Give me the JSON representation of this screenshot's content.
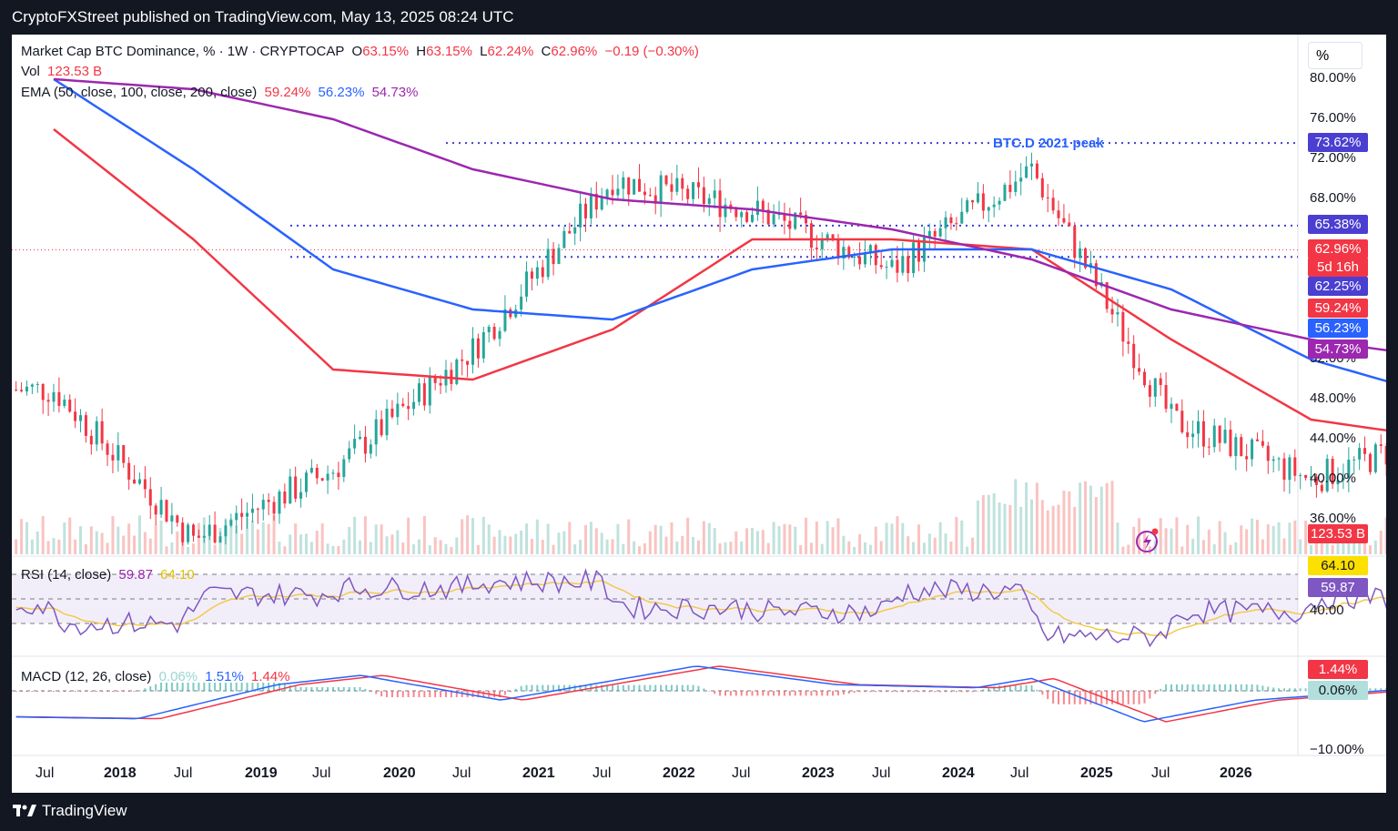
{
  "header": {
    "publisher_line": "CryptoFXStreet published on TradingView.com, May 13, 2025 08:24 UTC"
  },
  "footer": {
    "brand": "TradingView"
  },
  "legend": {
    "symbol": "Market Cap BTC Dominance, % · 1W · CRYPTOCAP",
    "open_label": "O",
    "open": "63.15%",
    "high_label": "H",
    "high": "63.15%",
    "low_label": "L",
    "low": "62.24%",
    "close_label": "C",
    "close": "62.96%",
    "change": "−0.19 (−0.30%)",
    "vol_label": "Vol",
    "vol": "123.53 B",
    "ema_label": "EMA (50, close, 100, close, 200, close)",
    "ema50": "59.24%",
    "ema100": "56.23%",
    "ema200": "54.73%",
    "rsi_label": "RSI (14, close)",
    "rsi": "59.87",
    "rsi_ma": "64.10",
    "macd_label": "MACD (12, 26, close)",
    "macd_hist": "0.06%",
    "macd": "1.51%",
    "macd_signal": "1.44%"
  },
  "scale_unit": "%",
  "annotation": "BTC.D 2021 peak",
  "price_axis": [
    "80.00%",
    "76.00%",
    "72.00%",
    "68.00%",
    "48.00%",
    "44.00%",
    "40.00%",
    "36.00%",
    "52.00%"
  ],
  "price_tags": {
    "peak": "73.62%",
    "level2": "65.38%",
    "last": "62.96%",
    "countdown": "5d 16h",
    "level3": "62.25%",
    "ema50": "59.24%",
    "ema100": "56.23%",
    "ema200": "54.73%",
    "vol": "123.53 B"
  },
  "rsi_axis": {
    "level": "40.00",
    "ma_tag": "64.10",
    "rsi_tag": "59.87"
  },
  "macd_axis": {
    "low": "−10.00%",
    "signal_tag": "1.44%",
    "hist_tag": "0.06%"
  },
  "time_axis": [
    "Jul",
    "2018",
    "Jul",
    "2019",
    "Jul",
    "2020",
    "Jul",
    "2021",
    "Jul",
    "2022",
    "Jul",
    "2023",
    "Jul",
    "2024",
    "Jul",
    "2025",
    "Jul",
    "2026"
  ],
  "colors": {
    "up": "#26a69a",
    "down": "#f23645",
    "ema50": "#f23645",
    "ema100": "#2962ff",
    "ema200": "#9c27b0",
    "levels": "#3f3fd0"
  },
  "chart_data": {
    "type": "line",
    "title": "Market Cap BTC Dominance, % · 1W · CRYPTOCAP",
    "ylim": [
      35,
      82
    ],
    "x": [
      "2017-07",
      "2018-01",
      "2018-07",
      "2019-01",
      "2019-07",
      "2020-01",
      "2020-07",
      "2021-01",
      "2021-07",
      "2022-01",
      "2022-07",
      "2023-01",
      "2023-07",
      "2024-01",
      "2024-07",
      "2025-01",
      "2025-05"
    ],
    "series": [
      {
        "name": "EMA 50",
        "values": [
          75,
          64,
          51,
          50,
          55,
          64,
          64,
          63,
          54,
          46,
          44,
          43,
          49,
          54,
          57,
          59,
          59.24
        ]
      },
      {
        "name": "EMA 100",
        "values": [
          80,
          71,
          61,
          57,
          56,
          61,
          63,
          63,
          59,
          52,
          48,
          46,
          48,
          51,
          53,
          55,
          56.23
        ]
      },
      {
        "name": "EMA 200",
        "values": [
          80,
          79,
          76,
          71,
          68,
          67,
          65,
          62,
          57,
          54,
          52,
          51,
          51,
          52,
          53,
          54,
          54.73
        ]
      }
    ],
    "close_points": [
      [
        "2017-07",
        49
      ],
      [
        "2018-01",
        34
      ],
      [
        "2018-07",
        41
      ],
      [
        "2019-01",
        53
      ],
      [
        "2019-07",
        70
      ],
      [
        "2020-01",
        67
      ],
      [
        "2020-07",
        61
      ],
      [
        "2021-01",
        71
      ],
      [
        "2021-07",
        46
      ],
      [
        "2022-01",
        40
      ],
      [
        "2022-07",
        45
      ],
      [
        "2023-01",
        42
      ],
      [
        "2023-07",
        51
      ],
      [
        "2024-01",
        53
      ],
      [
        "2024-07",
        56
      ],
      [
        "2025-01",
        57
      ],
      [
        "2025-05",
        62.96
      ]
    ],
    "levels": [
      73.62,
      65.38,
      62.25
    ],
    "rsi_levels": [
      70,
      40
    ]
  }
}
